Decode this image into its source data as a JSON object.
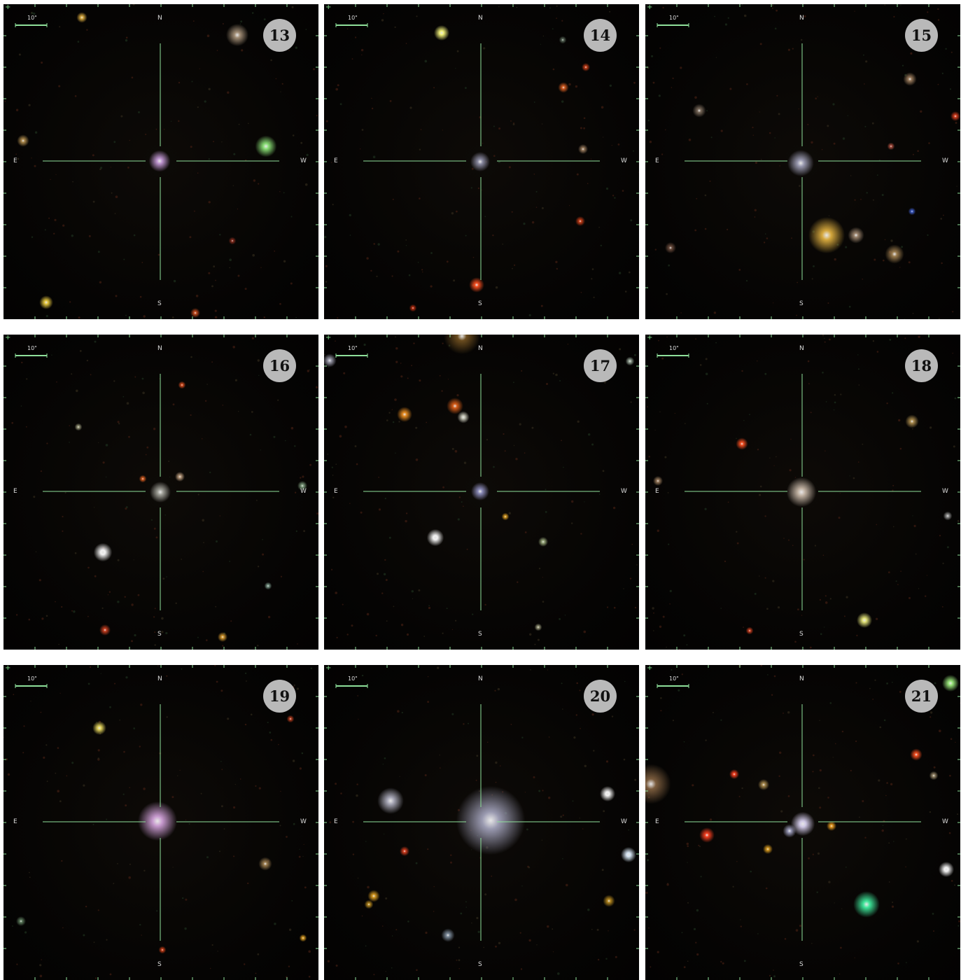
{
  "panels": [
    {
      "number": "13",
      "n": "N",
      "s": "S",
      "e": "E",
      "w": "W",
      "scale": "10\""
    },
    {
      "number": "14",
      "n": "N",
      "s": "S",
      "e": "E",
      "w": "W",
      "scale": "10\""
    },
    {
      "number": "15",
      "n": "N",
      "s": "S",
      "e": "E",
      "w": "W",
      "scale": "10\""
    },
    {
      "number": "16",
      "n": "N",
      "s": "S",
      "e": "E",
      "w": "W",
      "scale": "10\""
    },
    {
      "number": "17",
      "n": "N",
      "s": "S",
      "e": "E",
      "w": "W",
      "scale": "10\""
    },
    {
      "number": "18",
      "n": "N",
      "s": "S",
      "e": "E",
      "w": "W",
      "scale": "10\""
    },
    {
      "number": "19",
      "n": "N",
      "s": "S",
      "e": "E",
      "w": "W",
      "scale": "10\""
    },
    {
      "number": "20",
      "n": "N",
      "s": "S",
      "e": "E",
      "w": "W",
      "scale": "10\""
    },
    {
      "number": "21",
      "n": "N",
      "s": "S",
      "e": "E",
      "w": "W",
      "scale": "10\""
    }
  ],
  "colors": {
    "background": "#050403",
    "crosshair": "#8fe09a",
    "badge": "#b9b9b9",
    "page": "#ffffff"
  }
}
